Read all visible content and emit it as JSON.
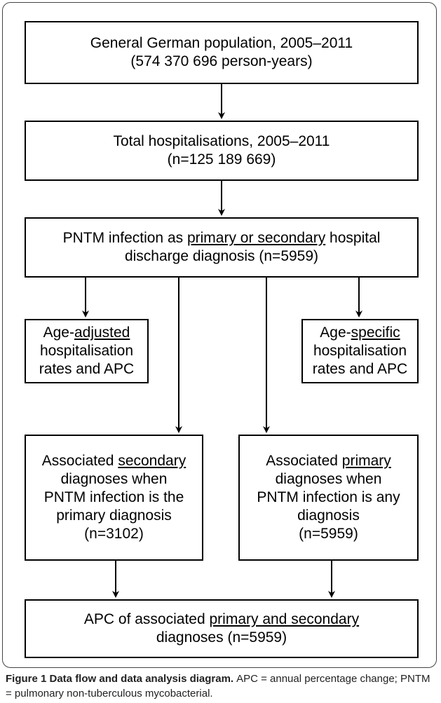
{
  "nodes": [
    {
      "lines": [
        [
          "General German population, 2005–2011"
        ],
        [
          "(574 370 696 person-years)"
        ]
      ]
    },
    {
      "lines": [
        [
          "Total hospitalisations, 2005–2011"
        ],
        [
          "(n=125 189 669)"
        ]
      ]
    },
    {
      "lines": [
        [
          "PNTM infection as ",
          {
            "text": "primary or secondary",
            "underline": true
          },
          " hospital"
        ],
        [
          "discharge diagnosis (n=5959)"
        ]
      ]
    },
    {
      "lines": [
        [
          "Age-",
          {
            "text": "adjusted",
            "underline": true
          }
        ],
        [
          "hospitalisation"
        ],
        [
          "rates and APC"
        ]
      ]
    },
    {
      "lines": [
        [
          "Age-",
          {
            "text": "specific",
            "underline": true
          }
        ],
        [
          "hospitalisation"
        ],
        [
          "rates and APC"
        ]
      ]
    },
    {
      "lines": [
        [
          "Associated ",
          {
            "text": "secondary",
            "underline": true
          }
        ],
        [
          "diagnoses when"
        ],
        [
          "PNTM infection is the"
        ],
        [
          "primary diagnosis"
        ],
        [
          "(n=3102)"
        ]
      ]
    },
    {
      "lines": [
        [
          "Associated ",
          {
            "text": "primary",
            "underline": true
          }
        ],
        [
          "diagnoses when"
        ],
        [
          "PNTM infection is any"
        ],
        [
          "diagnosis"
        ],
        [
          "(n=5959)"
        ]
      ]
    },
    {
      "lines": [
        [
          "APC of associated ",
          {
            "text": "primary and secondary",
            "underline": true
          }
        ],
        [
          "diagnoses (n=5959)"
        ]
      ]
    }
  ],
  "caption": {
    "title": "Figure 1 Data flow and data analysis diagram.",
    "text": "APC = annual percentage change; PNTM = pulmonary non-tuberculous mycobacterial."
  }
}
